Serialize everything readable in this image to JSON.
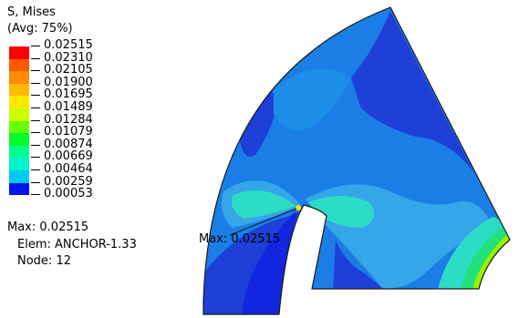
{
  "legend": {
    "title_line1": "S, Mises",
    "title_line2": "(Avg: 75%)",
    "levels": [
      {
        "label": "0.02515",
        "color": "#ff0000"
      },
      {
        "label": "0.02310",
        "color": "#ff5a00"
      },
      {
        "label": "0.02105",
        "color": "#ff8c00"
      },
      {
        "label": "0.01900",
        "color": "#ffb900"
      },
      {
        "label": "0.01695",
        "color": "#ffe800"
      },
      {
        "label": "0.01489",
        "color": "#c9ff00"
      },
      {
        "label": "0.01284",
        "color": "#66ff00"
      },
      {
        "label": "0.01079",
        "color": "#00ff2a"
      },
      {
        "label": "0.00874",
        "color": "#00ff8f"
      },
      {
        "label": "0.00669",
        "color": "#00f5c8"
      },
      {
        "label": "0.00464",
        "color": "#00c9f2"
      },
      {
        "label": "0.00259",
        "color": "#0078ff"
      },
      {
        "label": "0.00053",
        "color": "#0014f2"
      }
    ]
  },
  "info": {
    "max": "Max: 0.02515",
    "elem": "Elem: ANCHOR-1.33",
    "node": "Node: 12"
  },
  "plot": {
    "max_label": "Max: 0.02515",
    "colors": {
      "outline": "#1a1a1a",
      "base": "#1a7ee6",
      "dark_blue": "#1e3fd8",
      "deep_blue": "#1226e0",
      "mid_blue": "#1c8ee8",
      "light_blue": "#35a6e8",
      "cyan_green": "#2ddcc6",
      "green": "#22e07c",
      "yellow_green": "#9cf000",
      "peak": "#ffe000"
    }
  }
}
